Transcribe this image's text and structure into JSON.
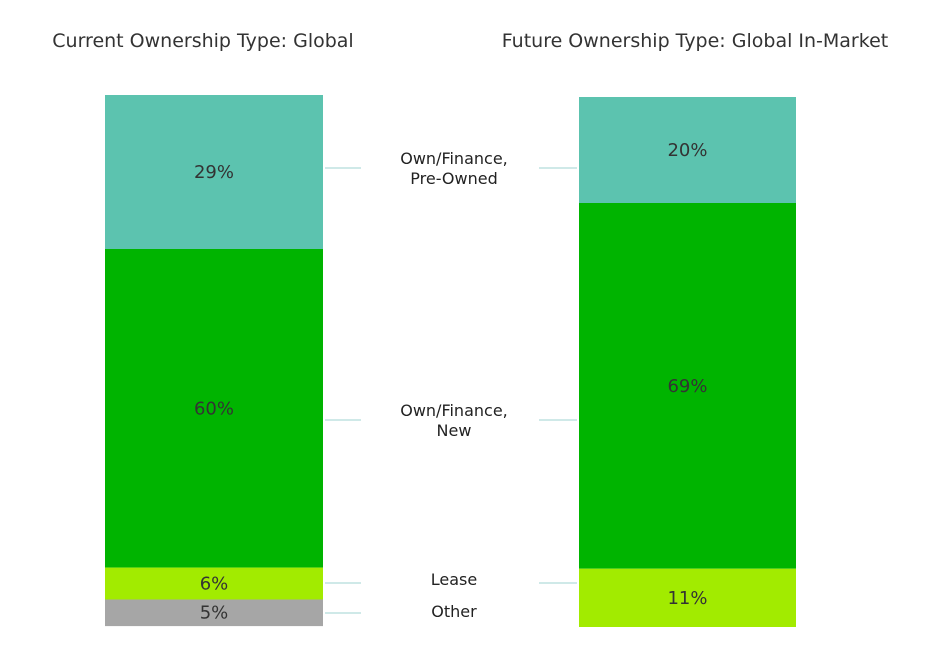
{
  "chart_data": {
    "type": "bar",
    "stacked": true,
    "percent_stacked": true,
    "categories": [
      "Own/Finance,\nPre-Owned",
      "Own/Finance,\nNew",
      "Lease",
      "Other"
    ],
    "series_colors": [
      "#5CC3AF",
      "#00B400",
      "#A2EB00",
      "#A6A6A6"
    ],
    "charts": [
      {
        "title": "Current Ownership Type: Global",
        "values": [
          29,
          60,
          6,
          5
        ],
        "data_labels": [
          "29%",
          "60%",
          "6%",
          "5%"
        ]
      },
      {
        "title": "Future Ownership Type: Global In-Market",
        "values": [
          20,
          69,
          11,
          0
        ],
        "data_labels": [
          "20%",
          "69%",
          "11%",
          ""
        ]
      }
    ],
    "connector_color": "#9FD3D0",
    "legend": "center",
    "grid": false
  }
}
